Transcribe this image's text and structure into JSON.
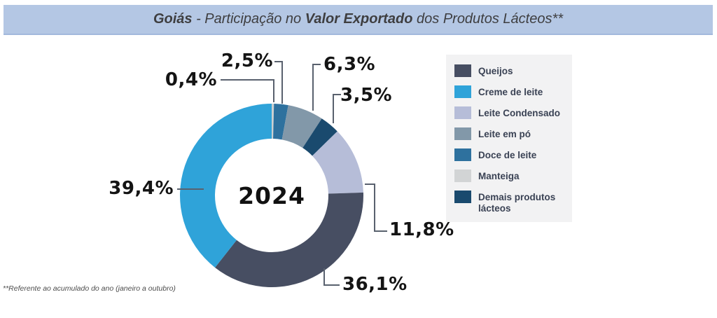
{
  "header": {
    "title_bold_1": "Goiás",
    "title_regular_1": " - Participação no ",
    "title_bold_2": "Valor Exportado",
    "title_regular_2": " dos Produtos Lácteos**"
  },
  "chart_data": {
    "type": "pie",
    "variant": "donut",
    "title": "Goiás - Participação no Valor Exportado dos Produtos Lácteos**",
    "center_label": "2024",
    "unit": "%",
    "direction": "clockwise",
    "start_angle_deg": 0,
    "legend_position": "right",
    "slices": [
      {
        "label": "Manteiga",
        "value": 0.4,
        "display": "0,4%",
        "color": "#cdd0d1"
      },
      {
        "label": "Doce de leite",
        "value": 2.5,
        "display": "2,5%",
        "color": "#2e719e"
      },
      {
        "label": "Leite em pó",
        "value": 6.3,
        "display": "6,3%",
        "color": "#8298a9"
      },
      {
        "label": "Demais produtos lácteos",
        "value": 3.5,
        "display": "3,5%",
        "color": "#1a4a6e"
      },
      {
        "label": "Leite Condensado",
        "value": 11.8,
        "display": "11,8%",
        "color": "#b6bdd8"
      },
      {
        "label": "Queijos",
        "value": 36.1,
        "display": "36,1%",
        "color": "#474e62"
      },
      {
        "label": "Creme de leite",
        "value": 39.4,
        "display": "39,4%",
        "color": "#2fa3d9"
      }
    ]
  },
  "legend": {
    "items": [
      {
        "label": "Queijos",
        "color": "#474e62"
      },
      {
        "label": "Creme de leite",
        "color": "#2fa3d9"
      },
      {
        "label": "Leite Condensado",
        "color": "#b6bdd8"
      },
      {
        "label": "Leite em pó",
        "color": "#8298a9"
      },
      {
        "label": "Doce de leite",
        "color": "#2e719e"
      },
      {
        "label": "Manteiga",
        "color": "#d2d4d5"
      },
      {
        "label": "Demais produtos lácteos",
        "color": "#1a4a6e"
      }
    ]
  },
  "footnote": {
    "text": "**Referente ao acumulado do ano (janeiro a outubro)"
  }
}
